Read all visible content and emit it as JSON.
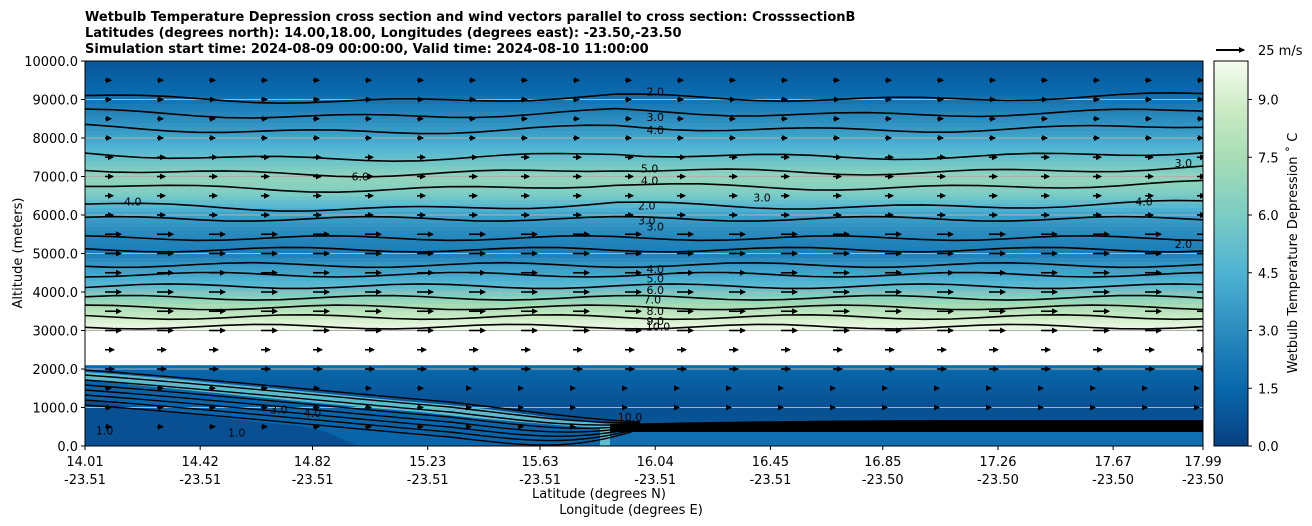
{
  "chart_data": {
    "type": "contourf",
    "title_lines": [
      "Wetbulb Temperature Depression cross section and wind vectors parallel to cross section: CrosssectionB",
      "Latitudes (degrees north): 14.00,18.00, Longitudes (degrees east): -23.50,-23.50",
      "Simulation start time: 2024-08-09 00:00:00, Valid time: 2024-08-10 11:00:00"
    ],
    "ylabel": "Altitude (meters)",
    "xlabel_lines": [
      "Latitude (degrees N)",
      "Longitude (degrees E)"
    ],
    "ylim": [
      0,
      10000
    ],
    "y_ticks": [
      "0.0",
      "1000.0",
      "2000.0",
      "3000.0",
      "4000.0",
      "5000.0",
      "6000.0",
      "7000.0",
      "8000.0",
      "9000.0",
      "10000.0"
    ],
    "x_ticks": [
      {
        "lat": "14.01",
        "lon": "-23.51"
      },
      {
        "lat": "14.42",
        "lon": "-23.51"
      },
      {
        "lat": "14.82",
        "lon": "-23.51"
      },
      {
        "lat": "15.23",
        "lon": "-23.51"
      },
      {
        "lat": "15.63",
        "lon": "-23.51"
      },
      {
        "lat": "16.04",
        "lon": "-23.51"
      },
      {
        "lat": "16.45",
        "lon": "-23.51"
      },
      {
        "lat": "16.85",
        "lon": "-23.50"
      },
      {
        "lat": "17.26",
        "lon": "-23.50"
      },
      {
        "lat": "17.67",
        "lon": "-23.50"
      },
      {
        "lat": "17.99",
        "lon": "-23.50"
      }
    ],
    "colorbar": {
      "label": "Wetbulb Temperature Depression ˚ C",
      "range": [
        0,
        10
      ],
      "ticks": [
        "0.0",
        "1.5",
        "3.0",
        "4.5",
        "6.0",
        "7.5",
        "9.0"
      ],
      "levels": 20
    },
    "wind_key": "25 m/s",
    "profile_altitudes": [
      0,
      500,
      1000,
      1500,
      2000,
      2500,
      3000,
      3200,
      3500,
      3800,
      4100,
      4400,
      4700,
      5000,
      5300,
      5700,
      6000,
      6300,
      6600,
      7000,
      7300,
      7600,
      8000,
      8400,
      8800,
      9200,
      9600,
      10000
    ],
    "profile_depression": [
      0.5,
      0.8,
      0.6,
      1.0,
      1.5,
      3.0,
      9.8,
      9.4,
      8.2,
      6.8,
      5.2,
      4.2,
      3.6,
      2.4,
      2.6,
      3.2,
      3.8,
      5.0,
      6.2,
      6.8,
      5.8,
      5.0,
      4.0,
      3.2,
      2.4,
      1.6,
      1.2,
      0.8
    ],
    "contour_labels": [
      {
        "text": "2.0",
        "lat": 16.04,
        "alt": 9150
      },
      {
        "text": "3.0",
        "lat": 16.04,
        "alt": 8500
      },
      {
        "text": "4.0",
        "lat": 16.04,
        "alt": 8150
      },
      {
        "text": "5.0",
        "lat": 16.02,
        "alt": 7150
      },
      {
        "text": "4.0",
        "lat": 16.02,
        "alt": 6850
      },
      {
        "text": "2.0",
        "lat": 16.01,
        "alt": 6200
      },
      {
        "text": "3.0",
        "lat": 16.01,
        "alt": 5800
      },
      {
        "text": "3.0",
        "lat": 16.04,
        "alt": 5650
      },
      {
        "text": "4.0",
        "lat": 16.04,
        "alt": 4550
      },
      {
        "text": "5.0",
        "lat": 16.04,
        "alt": 4300
      },
      {
        "text": "6.0",
        "lat": 16.04,
        "alt": 4000
      },
      {
        "text": "7.0",
        "lat": 16.03,
        "alt": 3750
      },
      {
        "text": "8.0",
        "lat": 16.04,
        "alt": 3450
      },
      {
        "text": "9.0",
        "lat": 16.04,
        "alt": 3200
      },
      {
        "text": "10.0",
        "lat": 16.05,
        "alt": 3050
      },
      {
        "text": "10.0",
        "lat": 15.95,
        "alt": 700
      },
      {
        "text": "3.0",
        "lat": 14.7,
        "alt": 900
      },
      {
        "text": "4.0",
        "lat": 14.82,
        "alt": 800
      },
      {
        "text": "1.0",
        "lat": 14.08,
        "alt": 350
      },
      {
        "text": "1.0",
        "lat": 14.55,
        "alt": 300
      },
      {
        "text": "6.0",
        "lat": 14.99,
        "alt": 6950
      },
      {
        "text": "4.0",
        "lat": 14.18,
        "alt": 6300
      },
      {
        "text": "3.0",
        "lat": 16.42,
        "alt": 6400
      },
      {
        "text": "4.0",
        "lat": 17.78,
        "alt": 6300
      },
      {
        "text": "2.0",
        "lat": 17.92,
        "alt": 5200
      },
      {
        "text": "3.0",
        "lat": 17.92,
        "alt": 7300
      }
    ]
  }
}
